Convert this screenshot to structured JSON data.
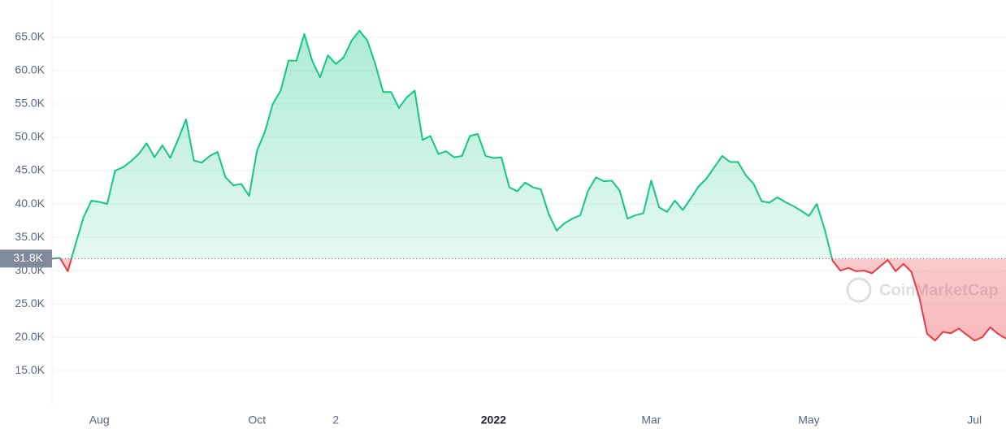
{
  "chart_data": {
    "type": "line",
    "categories": [
      null,
      null,
      null,
      null,
      null,
      null,
      "Aug",
      null,
      null,
      null,
      null,
      null,
      null,
      null,
      null,
      null,
      null,
      null,
      null,
      null,
      null,
      null,
      null,
      null,
      null,
      null,
      "Oct",
      null,
      null,
      null,
      null,
      null,
      null,
      null,
      null,
      null,
      "2",
      null,
      null,
      null,
      null,
      null,
      null,
      null,
      null,
      null,
      null,
      null,
      null,
      null,
      null,
      null,
      null,
      null,
      null,
      null,
      "2022",
      null,
      null,
      null,
      null,
      null,
      null,
      null,
      null,
      null,
      null,
      null,
      null,
      null,
      null,
      null,
      null,
      null,
      null,
      null,
      "Mar",
      null,
      null,
      null,
      null,
      null,
      null,
      null,
      null,
      null,
      null,
      null,
      null,
      null,
      null,
      null,
      null,
      null,
      null,
      null,
      "May",
      null,
      null,
      null,
      null,
      null,
      null,
      null,
      null,
      null,
      null,
      null,
      null,
      null,
      null,
      null,
      null,
      null,
      null,
      null,
      null,
      "Jul",
      null,
      null,
      null,
      null
    ],
    "series": [
      {
        "values": [
          31800,
          31900,
          29900,
          34000,
          38000,
          40500,
          40300,
          40000,
          45000,
          45500,
          46400,
          47500,
          49100,
          47000,
          48800,
          46900,
          49700,
          52700,
          46500,
          46200,
          47200,
          47800,
          44000,
          42800,
          43000,
          41200,
          48000,
          50800,
          55000,
          57000,
          61500,
          61500,
          65500,
          61500,
          59000,
          62300,
          61000,
          62000,
          64500,
          66000,
          64500,
          61000,
          56800,
          56800,
          54400,
          56000,
          57000,
          49600,
          50200,
          47500,
          47900,
          47000,
          47200,
          50200,
          50500,
          47200,
          46900,
          47000,
          42500,
          41900,
          43200,
          42500,
          42200,
          38500,
          36000,
          37100,
          37800,
          38300,
          42000,
          44000,
          43400,
          43500,
          42000,
          37800,
          38300,
          38600,
          43500,
          39500,
          38800,
          40500,
          39100,
          40800,
          42600,
          43800,
          45500,
          47200,
          46300,
          46300,
          44300,
          43000,
          40400,
          40200,
          41000,
          40300,
          39700,
          39000,
          38200,
          40000,
          36200,
          31500,
          30000,
          30400,
          29900,
          30000,
          29600,
          30600,
          31600,
          29900,
          31000,
          29800,
          26000,
          20500,
          19500,
          20800,
          20600,
          21300,
          20400,
          19500,
          20000,
          21500,
          20500,
          19800
        ]
      }
    ],
    "baseline": {
      "value": 31800,
      "label": "31.8K"
    },
    "up_color": "#16c784",
    "down_color": "#ea3943",
    "ylim": [
      9900,
      70600
    ],
    "yticks": [
      {
        "value": 15000,
        "label": "15.0K"
      },
      {
        "value": 20000,
        "label": "20.0K"
      },
      {
        "value": 25000,
        "label": "25.0K"
      },
      {
        "value": 30000,
        "label": "30.0K"
      },
      {
        "value": 35000,
        "label": "35.0K"
      },
      {
        "value": 40000,
        "label": "40.0K"
      },
      {
        "value": 45000,
        "label": "45.0K"
      },
      {
        "value": 50000,
        "label": "50.0K"
      },
      {
        "value": 55000,
        "label": "55.0K"
      },
      {
        "value": 60000,
        "label": "60.0K"
      },
      {
        "value": 65000,
        "label": "65.0K"
      }
    ],
    "grid": true,
    "watermark": "CoinMarketCap"
  }
}
